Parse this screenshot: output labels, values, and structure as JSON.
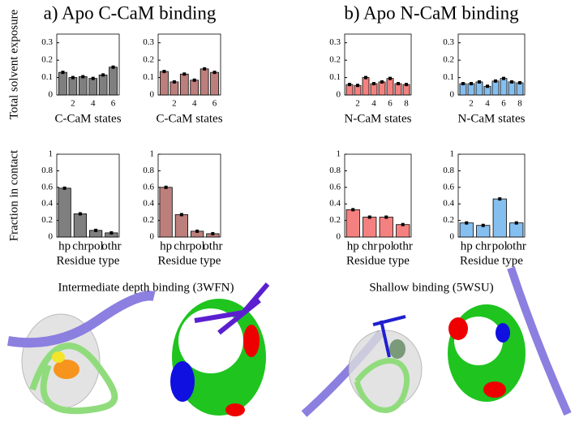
{
  "panel_titles": [
    "a) Apo C-CaM binding",
    "b) Apo N-CaM binding"
  ],
  "image_titles": [
    "Intermediate depth binding (3WFN)",
    "Shallow binding (5WSU)"
  ],
  "chart_data": [
    {
      "type": "bar",
      "ylabel": "Total solvent exposure",
      "xlabel": "C-CaM states",
      "x": [
        1,
        2,
        3,
        4,
        5,
        6
      ],
      "values": [
        0.13,
        0.1,
        0.105,
        0.095,
        0.115,
        0.16
      ],
      "color": "#7f7f7f",
      "xlim": [
        0.4,
        6.6
      ],
      "xticks": [
        2,
        4,
        6
      ],
      "ylim": [
        0,
        0.35
      ],
      "yticks": [
        0,
        0.1,
        0.2,
        0.3
      ]
    },
    {
      "type": "bar",
      "xlabel": "C-CaM states",
      "x": [
        1,
        2,
        3,
        4,
        5,
        6
      ],
      "values": [
        0.135,
        0.075,
        0.12,
        0.085,
        0.15,
        0.13
      ],
      "color": "#bd7f7c",
      "xlim": [
        0.4,
        6.6
      ],
      "xticks": [
        2,
        4,
        6
      ],
      "ylim": [
        0,
        0.35
      ],
      "yticks": [
        0,
        0.1,
        0.2,
        0.3
      ]
    },
    {
      "type": "bar",
      "xlabel": "N-CaM states",
      "x": [
        1,
        2,
        3,
        4,
        5,
        6,
        7,
        8
      ],
      "values": [
        0.06,
        0.055,
        0.1,
        0.065,
        0.075,
        0.095,
        0.065,
        0.06
      ],
      "color": "#f4817f",
      "xlim": [
        0.4,
        8.6
      ],
      "xticks": [
        2,
        4,
        6,
        8
      ],
      "ylim": [
        0,
        0.35
      ],
      "yticks": [
        0,
        0.1,
        0.2,
        0.3
      ]
    },
    {
      "type": "bar",
      "xlabel": "N-CaM states",
      "x": [
        1,
        2,
        3,
        4,
        5,
        6,
        7,
        8
      ],
      "values": [
        0.065,
        0.065,
        0.075,
        0.05,
        0.08,
        0.095,
        0.075,
        0.07
      ],
      "color": "#85bff0",
      "xlim": [
        0.4,
        8.6
      ],
      "xticks": [
        2,
        4,
        6,
        8
      ],
      "ylim": [
        0,
        0.35
      ],
      "yticks": [
        0,
        0.1,
        0.2,
        0.3
      ]
    },
    {
      "type": "bar",
      "ylabel": "Fraction in contact",
      "xlabel": "Residue type",
      "categories": [
        "hp",
        "chr",
        "pol",
        "othr"
      ],
      "values": [
        0.59,
        0.28,
        0.08,
        0.05
      ],
      "color": "#7f7f7f",
      "ylim": [
        0,
        1
      ],
      "yticks": [
        0,
        0.2,
        0.4,
        0.6,
        0.8,
        1
      ]
    },
    {
      "type": "bar",
      "xlabel": "Residue type",
      "categories": [
        "hp",
        "chr",
        "pol",
        "othr"
      ],
      "values": [
        0.6,
        0.27,
        0.07,
        0.04
      ],
      "color": "#bd7f7c",
      "ylim": [
        0,
        1
      ],
      "yticks": [
        0,
        0.2,
        0.4,
        0.6,
        0.8,
        1
      ]
    },
    {
      "type": "bar",
      "xlabel": "Residue type",
      "categories": [
        "hp",
        "chr",
        "pol",
        "othr"
      ],
      "values": [
        0.33,
        0.24,
        0.24,
        0.15
      ],
      "color": "#f4817f",
      "ylim": [
        0,
        1
      ],
      "yticks": [
        0,
        0.2,
        0.4,
        0.6,
        0.8,
        1
      ]
    },
    {
      "type": "bar",
      "xlabel": "Residue type",
      "categories": [
        "hp",
        "chr",
        "pol",
        "othr"
      ],
      "values": [
        0.17,
        0.14,
        0.46,
        0.17
      ],
      "color": "#85bff0",
      "ylim": [
        0,
        1
      ],
      "yticks": [
        0,
        0.2,
        0.4,
        0.6,
        0.8,
        1
      ]
    }
  ]
}
